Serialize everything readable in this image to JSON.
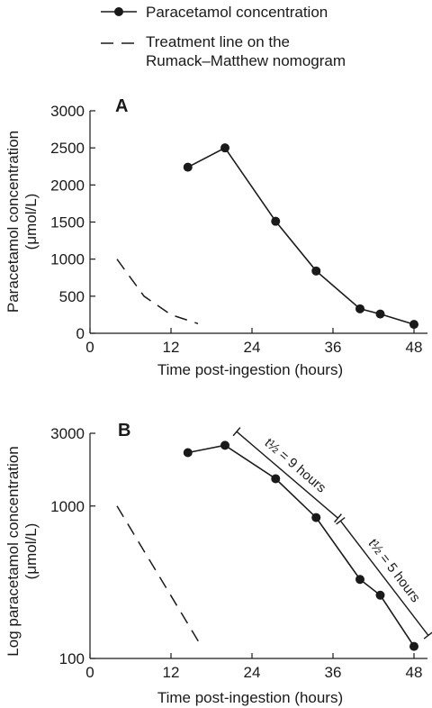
{
  "legend": {
    "items": [
      {
        "label": "Paracetamol concentration",
        "style": "solid-with-markers"
      },
      {
        "label": "Treatment line on the",
        "style": "dashed"
      },
      {
        "label": "Rumack–Matthew nomogram",
        "style": "continuation"
      }
    ]
  },
  "chart_data": [
    {
      "panel": "A",
      "type": "line",
      "xlabel": "Time post-ingestion (hours)",
      "ylabel": "Paracetamol concentration",
      "ylabel_unit": "(μmol/L)",
      "xlim": [
        0,
        50
      ],
      "ylim": [
        0,
        3000
      ],
      "xticks": [
        0,
        12,
        24,
        36,
        48
      ],
      "yticks": [
        0,
        500,
        1000,
        1500,
        2000,
        2500,
        3000
      ],
      "yscale": "linear",
      "grid": false,
      "series": [
        {
          "style": "solid-with-markers",
          "x": [
            14.5,
            20,
            27.5,
            33.5,
            40,
            43,
            48
          ],
          "y": [
            2240,
            2500,
            1510,
            840,
            330,
            260,
            120
          ]
        },
        {
          "style": "dashed",
          "x": [
            4,
            8,
            12,
            16
          ],
          "y": [
            1000,
            500,
            250,
            130
          ]
        }
      ]
    },
    {
      "panel": "B",
      "type": "line",
      "xlabel": "Time post-ingestion (hours)",
      "ylabel": "Log paracetamol concentration",
      "ylabel_unit": "(μmol/L)",
      "xlim": [
        0,
        50
      ],
      "ylim": [
        100,
        3000
      ],
      "xticks": [
        0,
        12,
        24,
        36,
        48
      ],
      "yticks": [
        100,
        1000,
        3000
      ],
      "yscale": "log",
      "grid": false,
      "series": [
        {
          "style": "solid-with-markers",
          "x": [
            14.5,
            20,
            27.5,
            33.5,
            40,
            43,
            48
          ],
          "y": [
            2240,
            2500,
            1510,
            840,
            330,
            260,
            120
          ]
        },
        {
          "style": "dashed",
          "x": [
            4,
            16.5
          ],
          "y": [
            1000,
            120
          ]
        }
      ],
      "annotations": [
        {
          "text": "t½ = 9 hours",
          "x_from": 20,
          "x_to": 35
        },
        {
          "text": "t½ = 5 hours",
          "x_from": 35,
          "x_to": 48
        }
      ]
    }
  ]
}
